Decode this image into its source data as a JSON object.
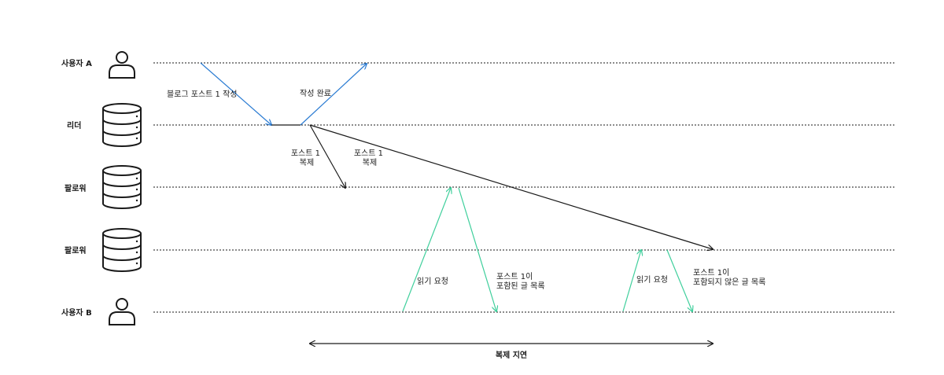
{
  "rows": {
    "user_a": "사용자 A",
    "leader": "리더",
    "follower_1": "팔로워",
    "follower_2": "팔로워",
    "user_b": "사용자 B"
  },
  "messages": {
    "write_post": "블로그 포스트 1 작성",
    "write_done": "작성 완료",
    "replicate_1": [
      "포스트 1",
      "복제"
    ],
    "replicate_2": [
      "포스트 1",
      "복제"
    ],
    "read_request_1": "읽기 요청",
    "read_response_1": [
      "포스트 1이",
      "포함된 글 목록"
    ],
    "read_request_2": "읽기 요청",
    "read_response_2": [
      "포스트 1이",
      "포함되지 않은 글 목록"
    ]
  },
  "replication_lag": "복제 지연",
  "colors": {
    "write": "#2b7cd3",
    "replication": "#1a1a1a",
    "read": "#3fcf9c",
    "lag_label": "#2b7cd3",
    "timeline": "#1a1a1a"
  }
}
